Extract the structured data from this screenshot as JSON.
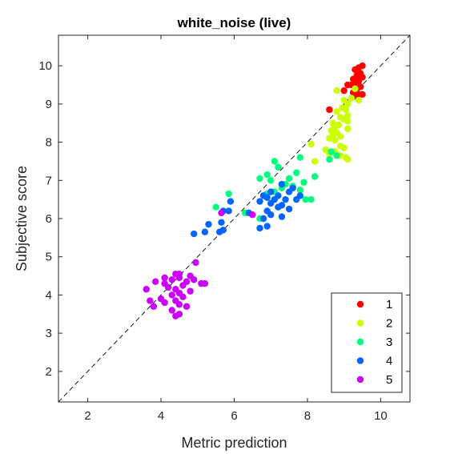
{
  "chart_data": {
    "type": "scatter",
    "title": "white_noise (live)",
    "xlabel": "Metric prediction",
    "ylabel": "Subjective score",
    "xlim": [
      1.2,
      10.8
    ],
    "ylim": [
      1.2,
      10.8
    ],
    "xticks": [
      "2",
      "4",
      "6",
      "8",
      "10"
    ],
    "yticks": [
      "2",
      "3",
      "4",
      "5",
      "6",
      "7",
      "8",
      "9",
      "10"
    ],
    "grid": false,
    "reference_line": "dashed diagonal y = x",
    "legend_position": "bottom-right",
    "series": [
      {
        "name": "1",
        "color": "#ff0000",
        "points": [
          [
            9.5,
            10.0
          ],
          [
            9.4,
            9.95
          ],
          [
            9.3,
            9.9
          ],
          [
            9.45,
            9.8
          ],
          [
            9.35,
            9.75
          ],
          [
            9.5,
            9.7
          ],
          [
            9.25,
            9.65
          ],
          [
            9.4,
            9.6
          ],
          [
            9.3,
            9.55
          ],
          [
            9.2,
            9.5
          ],
          [
            9.1,
            9.5
          ],
          [
            9.45,
            9.45
          ],
          [
            9.35,
            9.4
          ],
          [
            9.0,
            9.35
          ],
          [
            9.25,
            9.3
          ],
          [
            9.4,
            9.25
          ],
          [
            9.5,
            9.25
          ],
          [
            9.3,
            9.2
          ],
          [
            8.6,
            8.85
          ]
        ]
      },
      {
        "name": "2",
        "color": "#ccff00",
        "points": [
          [
            9.3,
            9.4
          ],
          [
            8.8,
            9.35
          ],
          [
            9.4,
            9.1
          ],
          [
            9.2,
            9.15
          ],
          [
            9.0,
            9.1
          ],
          [
            9.1,
            9.0
          ],
          [
            8.95,
            8.9
          ],
          [
            9.05,
            8.85
          ],
          [
            8.8,
            8.8
          ],
          [
            9.1,
            8.7
          ],
          [
            8.9,
            8.65
          ],
          [
            9.0,
            8.6
          ],
          [
            9.1,
            8.55
          ],
          [
            8.7,
            8.5
          ],
          [
            8.85,
            8.45
          ],
          [
            8.75,
            8.4
          ],
          [
            9.1,
            8.35
          ],
          [
            8.65,
            8.3
          ],
          [
            8.8,
            8.25
          ],
          [
            8.7,
            8.2
          ],
          [
            8.9,
            8.15
          ],
          [
            8.6,
            8.1
          ],
          [
            8.75,
            8.05
          ],
          [
            8.1,
            7.95
          ],
          [
            8.9,
            7.9
          ],
          [
            9.0,
            7.85
          ],
          [
            8.5,
            7.8
          ],
          [
            8.75,
            7.75
          ],
          [
            8.6,
            7.7
          ],
          [
            8.9,
            7.65
          ],
          [
            9.05,
            7.6
          ],
          [
            9.1,
            7.55
          ],
          [
            8.2,
            7.5
          ]
        ]
      },
      {
        "name": "3",
        "color": "#00ff80",
        "points": [
          [
            8.65,
            7.75
          ],
          [
            8.8,
            7.65
          ],
          [
            7.8,
            7.6
          ],
          [
            8.6,
            7.55
          ],
          [
            7.1,
            7.5
          ],
          [
            7.2,
            7.35
          ],
          [
            6.9,
            7.15
          ],
          [
            7.7,
            7.2
          ],
          [
            8.2,
            7.1
          ],
          [
            7.5,
            7.05
          ],
          [
            7.0,
            7.0
          ],
          [
            6.7,
            7.05
          ],
          [
            7.9,
            6.95
          ],
          [
            7.4,
            6.9
          ],
          [
            7.6,
            6.85
          ],
          [
            7.3,
            6.8
          ],
          [
            7.8,
            6.75
          ],
          [
            7.1,
            6.7
          ],
          [
            6.9,
            6.65
          ],
          [
            5.85,
            6.65
          ],
          [
            8.1,
            6.5
          ],
          [
            7.95,
            6.5
          ],
          [
            5.5,
            6.3
          ],
          [
            6.7,
            6.0
          ],
          [
            6.3,
            6.15
          ]
        ]
      },
      {
        "name": "4",
        "color": "#0066ff",
        "points": [
          [
            7.3,
            6.9
          ],
          [
            7.6,
            6.8
          ],
          [
            7.5,
            6.7
          ],
          [
            7.0,
            6.7
          ],
          [
            6.8,
            6.6
          ],
          [
            7.2,
            6.6
          ],
          [
            7.8,
            6.6
          ],
          [
            6.9,
            6.55
          ],
          [
            7.4,
            6.5
          ],
          [
            7.1,
            6.5
          ],
          [
            7.7,
            6.5
          ],
          [
            5.9,
            6.45
          ],
          [
            6.7,
            6.45
          ],
          [
            7.0,
            6.4
          ],
          [
            7.3,
            6.35
          ],
          [
            7.2,
            6.3
          ],
          [
            7.5,
            6.25
          ],
          [
            6.9,
            6.2
          ],
          [
            5.7,
            6.2
          ],
          [
            5.85,
            6.2
          ],
          [
            6.4,
            6.15
          ],
          [
            7.0,
            6.1
          ],
          [
            7.3,
            6.05
          ],
          [
            6.8,
            6.0
          ],
          [
            5.65,
            5.9
          ],
          [
            5.3,
            5.85
          ],
          [
            6.9,
            5.8
          ],
          [
            6.7,
            5.75
          ],
          [
            5.7,
            5.7
          ],
          [
            5.6,
            5.65
          ],
          [
            5.2,
            5.65
          ],
          [
            4.9,
            5.6
          ]
        ]
      },
      {
        "name": "5",
        "color": "#cc00ff",
        "points": [
          [
            5.65,
            6.15
          ],
          [
            6.5,
            6.1
          ],
          [
            4.95,
            4.85
          ],
          [
            4.4,
            4.55
          ],
          [
            4.5,
            4.55
          ],
          [
            4.8,
            4.5
          ],
          [
            4.1,
            4.45
          ],
          [
            4.5,
            4.45
          ],
          [
            4.9,
            4.4
          ],
          [
            4.3,
            4.4
          ],
          [
            3.85,
            4.35
          ],
          [
            4.7,
            4.35
          ],
          [
            4.1,
            4.3
          ],
          [
            5.1,
            4.3
          ],
          [
            5.2,
            4.3
          ],
          [
            4.6,
            4.25
          ],
          [
            4.2,
            4.2
          ],
          [
            4.4,
            4.15
          ],
          [
            3.6,
            4.15
          ],
          [
            4.8,
            4.1
          ],
          [
            4.5,
            4.05
          ],
          [
            4.3,
            4.0
          ],
          [
            4.6,
            3.95
          ],
          [
            4.0,
            3.9
          ],
          [
            4.4,
            3.85
          ],
          [
            3.7,
            3.85
          ],
          [
            4.1,
            3.8
          ],
          [
            4.5,
            3.75
          ],
          [
            4.7,
            3.7
          ],
          [
            3.8,
            3.7
          ],
          [
            4.3,
            3.6
          ],
          [
            4.5,
            3.5
          ],
          [
            4.4,
            3.45
          ]
        ]
      }
    ]
  }
}
